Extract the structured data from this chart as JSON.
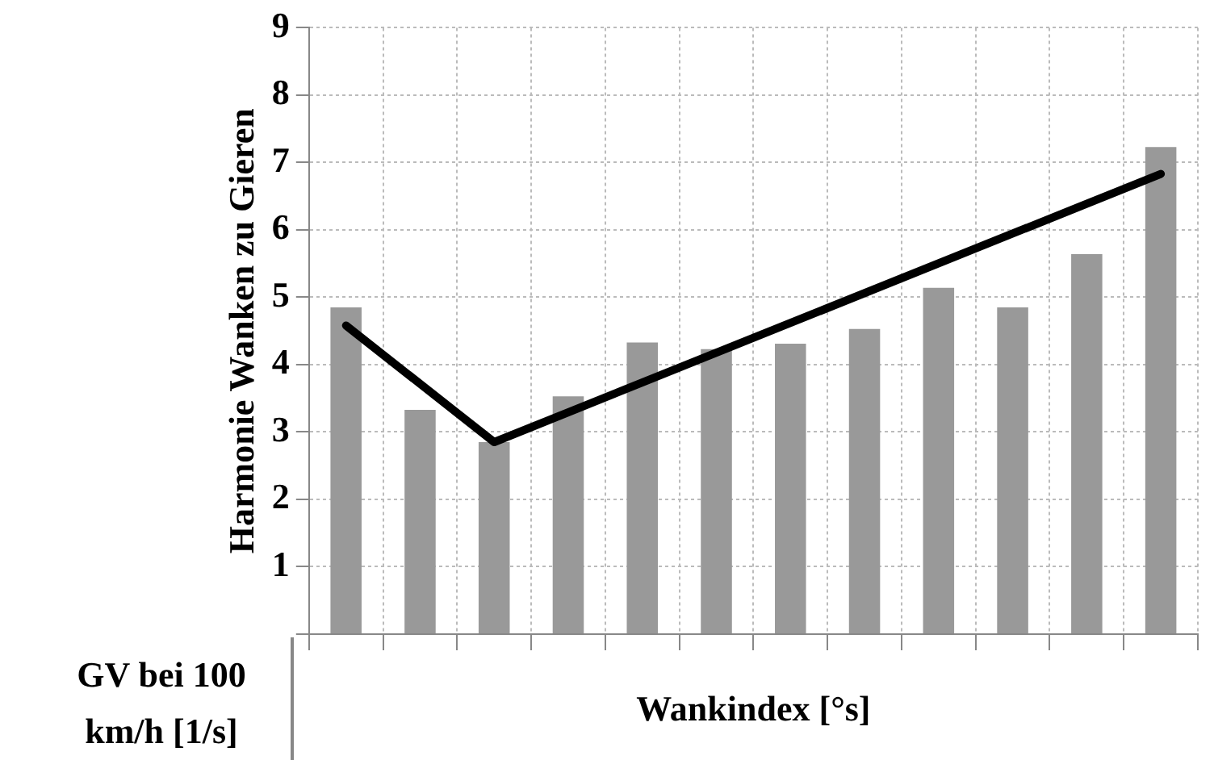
{
  "chart_data": {
    "type": "bar",
    "ylabel": "Harmonie Wanken zu Gieren",
    "xlabel": "Wankindex [°s]",
    "annotations": [
      "GV bei 100 km/h [1/s]"
    ],
    "categories": [
      null,
      null,
      null,
      null,
      null,
      null,
      null,
      null,
      null,
      null,
      null,
      null
    ],
    "ylim": [
      0,
      9
    ],
    "yticks": [
      {
        "value": 0,
        "label": null
      },
      1,
      2,
      3,
      4,
      5,
      6,
      7,
      8,
      9
    ],
    "tick_labels": "y",
    "grid": true,
    "series": [
      {
        "color": "#999999",
        "values": [
          4.85,
          3.33,
          2.85,
          3.53,
          4.33,
          4.23,
          4.31,
          4.53,
          5.14,
          4.85,
          5.64,
          7.23
        ]
      },
      {
        "type": "line",
        "color": "#000000",
        "values": [
          4.58,
          null,
          2.85,
          null,
          null,
          null,
          null,
          null,
          null,
          null,
          null,
          6.83
        ]
      }
    ]
  }
}
